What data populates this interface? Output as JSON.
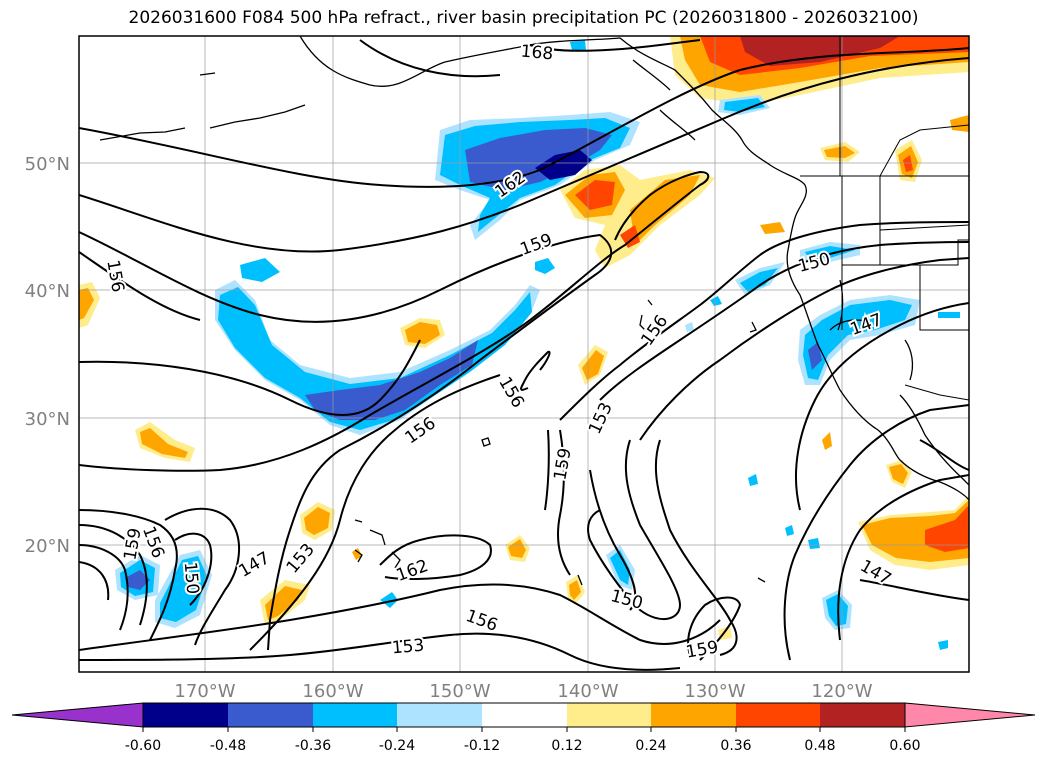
{
  "title": "2026031600 F084 500 hPa refract., river basin precipitation PC (2026031800 - 2026032100)",
  "map": {
    "lat_labels": [
      "50°N",
      "40°N",
      "30°N",
      "20°N"
    ],
    "lon_labels": [
      "170°W",
      "160°W",
      "150°W",
      "140°W",
      "130°W",
      "120°W"
    ],
    "contour_labels": [
      {
        "text": "168",
        "rot": 5
      },
      {
        "text": "162",
        "rot": -35
      },
      {
        "text": "159",
        "rot": -20
      },
      {
        "text": "156",
        "rot": 80
      },
      {
        "text": "150",
        "rot": -15
      },
      {
        "text": "147",
        "rot": -20
      },
      {
        "text": "156",
        "rot": -55
      },
      {
        "text": "156",
        "rot": 60
      },
      {
        "text": "153",
        "rot": -65
      },
      {
        "text": "159",
        "rot": -80
      },
      {
        "text": "156",
        "rot": -35
      },
      {
        "text": "159",
        "rot": -80
      },
      {
        "text": "156",
        "rot": 70
      },
      {
        "text": "150",
        "rot": 85
      },
      {
        "text": "147",
        "rot": -30
      },
      {
        "text": "153",
        "rot": -50
      },
      {
        "text": "162",
        "rot": -20
      },
      {
        "text": "156",
        "rot": 20
      },
      {
        "text": "153",
        "rot": -5
      },
      {
        "text": "150",
        "rot": 15
      },
      {
        "text": "159",
        "rot": -10
      },
      {
        "text": "147",
        "rot": 30
      }
    ]
  },
  "colorbar": {
    "colors": [
      "#9932cc",
      "#00008b",
      "#3a5bcd",
      "#00bfff",
      "#aee3ff",
      "#ffffff",
      "#ffec8b",
      "#ffa500",
      "#ff4500",
      "#b22222",
      "#ff88aa"
    ],
    "ticks": [
      "-0.60",
      "-0.48",
      "-0.36",
      "-0.24",
      "-0.12",
      "0.12",
      "0.24",
      "0.36",
      "0.48",
      "0.60"
    ]
  }
}
